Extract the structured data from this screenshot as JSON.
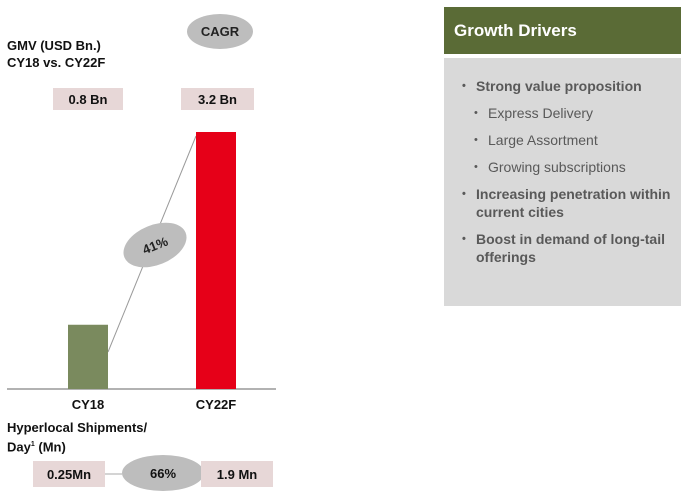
{
  "chart_data": {
    "type": "bar",
    "title": "GMV (USD Bn.)\nCY18 vs. CY22F",
    "categories": [
      "CY18",
      "CY22F"
    ],
    "values": [
      0.8,
      3.2
    ],
    "value_labels": [
      "0.8 Bn",
      "3.2 Bn"
    ],
    "colors": [
      "#7a8a5e",
      "#e60018"
    ],
    "growth_label": "CAGR",
    "growth_value": "41%"
  },
  "hyperlocal": {
    "label_main": "Hyperlocal Shipments/",
    "label_day": "Day",
    "label_sup": "1",
    "label_unit": " (Mn)",
    "from": "0.25Mn",
    "growth": "66%",
    "to": "1.9 Mn"
  },
  "panel": {
    "title": "Growth Drivers",
    "header_color": "#5a6b36",
    "bullet1": "Strong value proposition",
    "sub1": "Express Delivery",
    "sub2": "Large Assortment",
    "sub3": "Growing subscriptions",
    "bullet2": "Increasing penetration within current cities",
    "bullet3": "Boost in demand of long-tail offerings"
  }
}
